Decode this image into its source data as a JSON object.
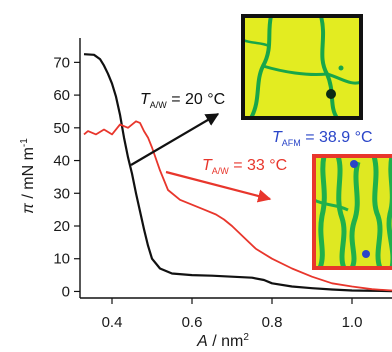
{
  "chart_data": {
    "type": "line",
    "title": "",
    "xlabel": {
      "symbol": "A",
      "unit": " / nm",
      "sup": "2"
    },
    "ylabel": {
      "symbol": "π",
      "unit": " / mN m",
      "sup": "-1"
    },
    "xlim": [
      0.32,
      1.1
    ],
    "ylim": [
      -2,
      75
    ],
    "xticks": [
      0.4,
      0.6,
      0.8,
      1.0
    ],
    "xtick_labels": [
      "0.4",
      "0.6",
      "0.8",
      "1.0"
    ],
    "yticks": [
      0,
      10,
      20,
      30,
      40,
      50,
      60,
      70
    ],
    "ytick_labels": [
      "0",
      "10",
      "20",
      "30",
      "40",
      "50",
      "60",
      "70"
    ],
    "grid": false,
    "series": [
      {
        "color": "#111111",
        "x": [
          0.33,
          0.355,
          0.37,
          0.38,
          0.39,
          0.4,
          0.41,
          0.42,
          0.43,
          0.44,
          0.45,
          0.46,
          0.47,
          0.48,
          0.49,
          0.5,
          0.52,
          0.55,
          0.6,
          0.65,
          0.7,
          0.75,
          0.78,
          0.8,
          0.85,
          0.9,
          0.95,
          1.0,
          1.1
        ],
        "y": [
          72.5,
          72.3,
          71,
          69,
          66.5,
          63.5,
          59.5,
          54,
          47,
          41,
          36,
          30,
          24.5,
          19,
          14,
          10,
          7,
          5.5,
          5,
          4.8,
          4.5,
          4.2,
          3.5,
          2.5,
          1.5,
          1,
          0.6,
          0.3,
          0.1
        ]
      },
      {
        "color": "#e8362c",
        "x": [
          0.33,
          0.34,
          0.36,
          0.38,
          0.4,
          0.42,
          0.44,
          0.46,
          0.47,
          0.48,
          0.49,
          0.5,
          0.52,
          0.54,
          0.57,
          0.6,
          0.63,
          0.66,
          0.68,
          0.7,
          0.73,
          0.76,
          0.8,
          0.85,
          0.9,
          0.95,
          1.0,
          1.05,
          1.1
        ],
        "y": [
          48,
          49,
          48,
          49.5,
          48,
          51,
          50,
          52,
          51.5,
          49,
          47,
          44,
          37,
          31,
          28,
          26.5,
          25,
          23.5,
          22,
          20,
          16.5,
          13,
          10,
          7,
          4.5,
          2.5,
          1.5,
          0.7,
          0.3
        ]
      }
    ],
    "annotations": [
      {
        "prefix": "T",
        "subscript": "A/W",
        "text": " = 20 °C",
        "color": "#111111"
      },
      {
        "prefix": "T",
        "subscript": "A/W",
        "text": " = 33 °C",
        "color": "#e8362c"
      },
      {
        "prefix": "T",
        "subscript": "AFM",
        "text": " = 38.9 °C",
        "color": "#2a45c8"
      }
    ],
    "insets": [
      {
        "frame_color": "#111111"
      },
      {
        "frame_color": "#e8362c"
      }
    ]
  }
}
